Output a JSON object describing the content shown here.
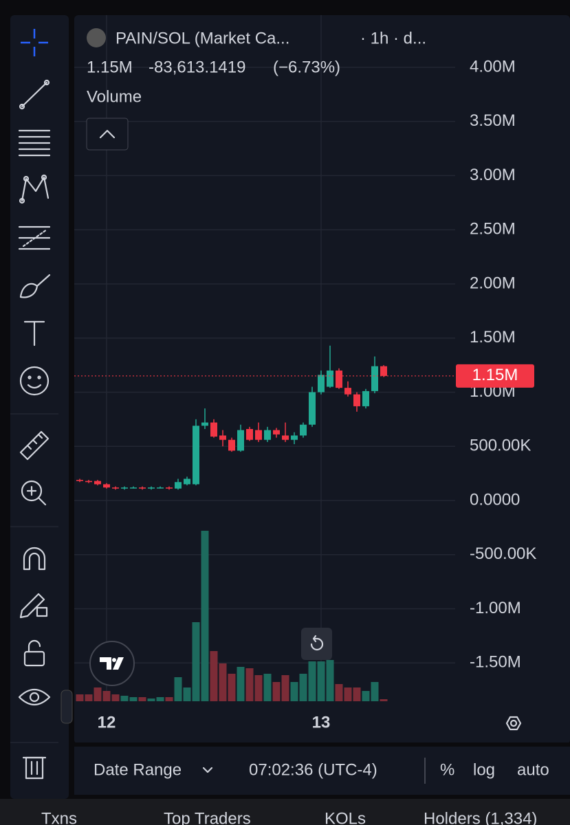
{
  "header": {
    "pair": "PAIN/SOL (Market Ca...",
    "interval": "· 1h · d...",
    "change": "-83,613.1419",
    "change_pct": "(−6.73%)",
    "indicator": "Volume"
  },
  "chart_data": {
    "type": "candlestick",
    "categories": [
      null,
      null,
      null,
      "12",
      null,
      null,
      null,
      null,
      null,
      null,
      null,
      null,
      null,
      null,
      null,
      null,
      null,
      null,
      null,
      null,
      null,
      null,
      null,
      null,
      null,
      null,
      null,
      "13",
      null,
      null,
      null,
      null,
      null,
      null,
      null
    ],
    "open": [
      190000,
      180000,
      180000,
      150000,
      120000,
      110000,
      120000,
      120000,
      110000,
      120000,
      120000,
      110000,
      150000,
      150000,
      690000,
      720000,
      600000,
      560000,
      460000,
      660000,
      650000,
      560000,
      650000,
      600000,
      560000,
      600000,
      700000,
      1000000,
      1050000,
      1200000,
      1040000,
      980000,
      870000,
      1010000,
      1240000
    ],
    "high": [
      200000,
      190000,
      190000,
      160000,
      130000,
      130000,
      130000,
      130000,
      130000,
      130000,
      130000,
      200000,
      220000,
      750000,
      850000,
      750000,
      650000,
      580000,
      700000,
      680000,
      720000,
      680000,
      670000,
      720000,
      630000,
      720000,
      1050000,
      1200000,
      1430000,
      1220000,
      1100000,
      1000000,
      1030000,
      1330000,
      1250000
    ],
    "low": [
      170000,
      160000,
      140000,
      110000,
      100000,
      100000,
      110000,
      100000,
      100000,
      110000,
      100000,
      100000,
      140000,
      140000,
      660000,
      580000,
      500000,
      450000,
      450000,
      550000,
      540000,
      540000,
      580000,
      540000,
      520000,
      580000,
      680000,
      980000,
      1040000,
      1030000,
      960000,
      820000,
      850000,
      990000,
      1140000
    ],
    "close": [
      180000,
      170000,
      150000,
      120000,
      110000,
      120000,
      120000,
      110000,
      120000,
      120000,
      110000,
      170000,
      200000,
      690000,
      720000,
      590000,
      560000,
      460000,
      650000,
      560000,
      560000,
      650000,
      610000,
      560000,
      600000,
      700000,
      1000000,
      1160000,
      1200000,
      1040000,
      980000,
      870000,
      1010000,
      1240000,
      1150000
    ],
    "volume": [
      10,
      10,
      20,
      15,
      10,
      8,
      6,
      6,
      4,
      6,
      6,
      35,
      20,
      115,
      248,
      73,
      55,
      40,
      50,
      48,
      38,
      40,
      28,
      38,
      28,
      40,
      58,
      58,
      60,
      25,
      20,
      20,
      15,
      28,
      3
    ],
    "volume_ylim": [
      0,
      260
    ],
    "ylim": [
      -1854000,
      4482000
    ],
    "yticks": [
      {
        "value": 4000000,
        "label": "4.00M"
      },
      {
        "value": 3500000,
        "label": "3.50M"
      },
      {
        "value": 3000000,
        "label": "3.00M"
      },
      {
        "value": 2500000,
        "label": "2.50M"
      },
      {
        "value": 2000000,
        "label": "2.00M"
      },
      {
        "value": 1500000,
        "label": "1.50M"
      },
      {
        "value": 1000000,
        "label": "1.00M"
      },
      {
        "value": 500000,
        "label": "500.00K"
      },
      {
        "value": 0,
        "label": "0.0000"
      },
      {
        "value": -500000,
        "label": "-500.00K"
      },
      {
        "value": -1000000,
        "label": "-1.00M"
      },
      {
        "value": -1500000,
        "label": "-1.50M"
      }
    ],
    "last_price": {
      "value": 1150000,
      "label": "1.15M"
    },
    "up_color": "#22ab94",
    "down_color": "#f23645",
    "volume_up_color": "#1d6b5e",
    "volume_down_color": "#7c2c37",
    "grid": true
  },
  "footer": {
    "date_range": "Date Range",
    "time": "07:02:36 (UTC-4)",
    "percent": "%",
    "log": "log",
    "auto": "auto"
  },
  "tabs": [
    "Txns",
    "Top Traders",
    "KOLs",
    "Holders (1,334)"
  ]
}
